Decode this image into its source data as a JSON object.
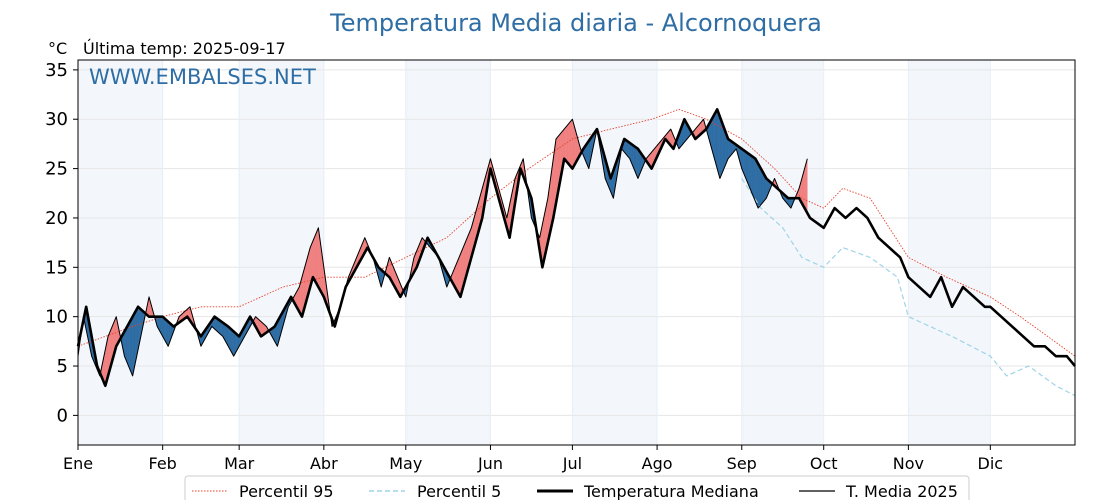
{
  "chart_data": {
    "type": "line",
    "title": "Temperatura Media diaria - Alcornoquera",
    "unit": "°C",
    "last_update": "Última temp: 2025-09-17",
    "watermark": "WWW.EMBALSES.NET",
    "ylim": [
      -3,
      36
    ],
    "yticks": [
      0,
      5,
      10,
      15,
      20,
      25,
      30,
      35
    ],
    "xlim": [
      0,
      365
    ],
    "month_labels": [
      "Ene",
      "Feb",
      "Mar",
      "Abr",
      "May",
      "Jun",
      "Jul",
      "Ago",
      "Sep",
      "Oct",
      "Nov",
      "Dic"
    ],
    "month_starts": [
      0,
      31,
      59,
      90,
      120,
      151,
      181,
      212,
      243,
      273,
      304,
      334
    ],
    "grid": true,
    "legend_position": "bottom",
    "colors": {
      "title": "#2f6ea4",
      "above_median": "#f08080",
      "below_median": "#2e6da4",
      "percentile_95": "#e8402a",
      "percentile_5": "#9fd3e6",
      "median": "#000000",
      "mean_2025": "#000000",
      "month_shade": "#f3f7fc"
    },
    "series": [
      {
        "name": "Percentil 95",
        "style": "dotted",
        "points": [
          [
            0,
            7
          ],
          [
            10,
            8
          ],
          [
            20,
            9
          ],
          [
            31,
            10
          ],
          [
            45,
            11
          ],
          [
            59,
            11
          ],
          [
            75,
            13
          ],
          [
            90,
            14
          ],
          [
            105,
            14
          ],
          [
            120,
            16
          ],
          [
            135,
            18
          ],
          [
            151,
            22
          ],
          [
            165,
            25
          ],
          [
            181,
            28
          ],
          [
            195,
            29
          ],
          [
            210,
            30
          ],
          [
            220,
            31
          ],
          [
            230,
            30
          ],
          [
            243,
            28
          ],
          [
            255,
            25
          ],
          [
            265,
            22
          ],
          [
            273,
            21
          ],
          [
            280,
            23
          ],
          [
            290,
            22
          ],
          [
            304,
            16
          ],
          [
            318,
            14
          ],
          [
            334,
            12
          ],
          [
            345,
            10
          ],
          [
            355,
            8
          ],
          [
            365,
            6
          ]
        ]
      },
      {
        "name": "Percentil 5",
        "style": "dashed",
        "points": [
          [
            243,
            24
          ],
          [
            250,
            21
          ],
          [
            258,
            19
          ],
          [
            265,
            16
          ],
          [
            273,
            15
          ],
          [
            280,
            17
          ],
          [
            290,
            16
          ],
          [
            300,
            14
          ],
          [
            304,
            10
          ],
          [
            312,
            9
          ],
          [
            320,
            8
          ],
          [
            334,
            6
          ],
          [
            340,
            4
          ],
          [
            348,
            5
          ],
          [
            358,
            3
          ],
          [
            365,
            2
          ]
        ]
      },
      {
        "name": "Temperatura Mediana",
        "style": "solid-thick",
        "points": [
          [
            0,
            7
          ],
          [
            3,
            11
          ],
          [
            7,
            5
          ],
          [
            10,
            3
          ],
          [
            14,
            7
          ],
          [
            18,
            9
          ],
          [
            22,
            11
          ],
          [
            26,
            10
          ],
          [
            31,
            10
          ],
          [
            35,
            9
          ],
          [
            40,
            10
          ],
          [
            45,
            8
          ],
          [
            50,
            10
          ],
          [
            55,
            9
          ],
          [
            59,
            8
          ],
          [
            63,
            10
          ],
          [
            67,
            8
          ],
          [
            72,
            9
          ],
          [
            78,
            12
          ],
          [
            82,
            10
          ],
          [
            86,
            14
          ],
          [
            90,
            12
          ],
          [
            94,
            9
          ],
          [
            98,
            13
          ],
          [
            102,
            15
          ],
          [
            106,
            17
          ],
          [
            110,
            15
          ],
          [
            114,
            14
          ],
          [
            118,
            12
          ],
          [
            120,
            13
          ],
          [
            124,
            15
          ],
          [
            128,
            18
          ],
          [
            132,
            16
          ],
          [
            136,
            14
          ],
          [
            140,
            12
          ],
          [
            144,
            16
          ],
          [
            148,
            20
          ],
          [
            151,
            25
          ],
          [
            155,
            21
          ],
          [
            158,
            18
          ],
          [
            162,
            25
          ],
          [
            166,
            22
          ],
          [
            170,
            15
          ],
          [
            174,
            20
          ],
          [
            178,
            26
          ],
          [
            181,
            25
          ],
          [
            185,
            27
          ],
          [
            190,
            29
          ],
          [
            195,
            24
          ],
          [
            200,
            28
          ],
          [
            205,
            27
          ],
          [
            210,
            25
          ],
          [
            215,
            28
          ],
          [
            218,
            27
          ],
          [
            222,
            30
          ],
          [
            226,
            28
          ],
          [
            230,
            29
          ],
          [
            234,
            31
          ],
          [
            238,
            28
          ],
          [
            243,
            27
          ],
          [
            248,
            26
          ],
          [
            252,
            24
          ],
          [
            256,
            23
          ],
          [
            260,
            22
          ],
          [
            264,
            22
          ],
          [
            268,
            20
          ],
          [
            273,
            19
          ],
          [
            277,
            21
          ],
          [
            281,
            20
          ],
          [
            285,
            21
          ],
          [
            289,
            20
          ],
          [
            293,
            18
          ],
          [
            297,
            17
          ],
          [
            301,
            16
          ],
          [
            304,
            14
          ],
          [
            308,
            13
          ],
          [
            312,
            12
          ],
          [
            316,
            14
          ],
          [
            320,
            11
          ],
          [
            324,
            13
          ],
          [
            328,
            12
          ],
          [
            332,
            11
          ],
          [
            334,
            11
          ],
          [
            338,
            10
          ],
          [
            342,
            9
          ],
          [
            346,
            8
          ],
          [
            350,
            7
          ],
          [
            354,
            7
          ],
          [
            358,
            6
          ],
          [
            362,
            6
          ],
          [
            365,
            5
          ]
        ]
      },
      {
        "name": "T. Media 2025",
        "style": "solid-thin",
        "points": [
          [
            0,
            6
          ],
          [
            2,
            10
          ],
          [
            5,
            6
          ],
          [
            8,
            4
          ],
          [
            11,
            8
          ],
          [
            14,
            10
          ],
          [
            17,
            6
          ],
          [
            20,
            4
          ],
          [
            23,
            8
          ],
          [
            26,
            12
          ],
          [
            29,
            9
          ],
          [
            33,
            7
          ],
          [
            37,
            10
          ],
          [
            41,
            11
          ],
          [
            45,
            7
          ],
          [
            49,
            9
          ],
          [
            53,
            8
          ],
          [
            57,
            6
          ],
          [
            61,
            8
          ],
          [
            65,
            10
          ],
          [
            69,
            9
          ],
          [
            73,
            7
          ],
          [
            77,
            11
          ],
          [
            81,
            13
          ],
          [
            85,
            17
          ],
          [
            88,
            19
          ],
          [
            90,
            15
          ],
          [
            93,
            9
          ],
          [
            96,
            11
          ],
          [
            99,
            14
          ],
          [
            102,
            16
          ],
          [
            105,
            18
          ],
          [
            108,
            16
          ],
          [
            111,
            13
          ],
          [
            114,
            16
          ],
          [
            117,
            14
          ],
          [
            120,
            12
          ],
          [
            123,
            16
          ],
          [
            126,
            18
          ],
          [
            129,
            17
          ],
          [
            132,
            16
          ],
          [
            135,
            13
          ],
          [
            138,
            15
          ],
          [
            141,
            17
          ],
          [
            144,
            19
          ],
          [
            147,
            22
          ],
          [
            151,
            26
          ],
          [
            154,
            23
          ],
          [
            157,
            20
          ],
          [
            160,
            24
          ],
          [
            163,
            26
          ],
          [
            166,
            20
          ],
          [
            169,
            18
          ],
          [
            172,
            22
          ],
          [
            175,
            28
          ],
          [
            178,
            29
          ],
          [
            181,
            30
          ],
          [
            184,
            27
          ],
          [
            187,
            25
          ],
          [
            190,
            29
          ],
          [
            193,
            24
          ],
          [
            196,
            22
          ],
          [
            199,
            27
          ],
          [
            202,
            26
          ],
          [
            205,
            24
          ],
          [
            208,
            26
          ],
          [
            211,
            27
          ],
          [
            214,
            28
          ],
          [
            217,
            29
          ],
          [
            220,
            27
          ],
          [
            223,
            28
          ],
          [
            226,
            29
          ],
          [
            229,
            30
          ],
          [
            232,
            27
          ],
          [
            235,
            24
          ],
          [
            238,
            26
          ],
          [
            241,
            27
          ],
          [
            243,
            25
          ],
          [
            246,
            23
          ],
          [
            249,
            21
          ],
          [
            252,
            22
          ],
          [
            255,
            24
          ],
          [
            258,
            22
          ],
          [
            261,
            21
          ],
          [
            264,
            23
          ],
          [
            267,
            26
          ]
        ]
      }
    ]
  }
}
